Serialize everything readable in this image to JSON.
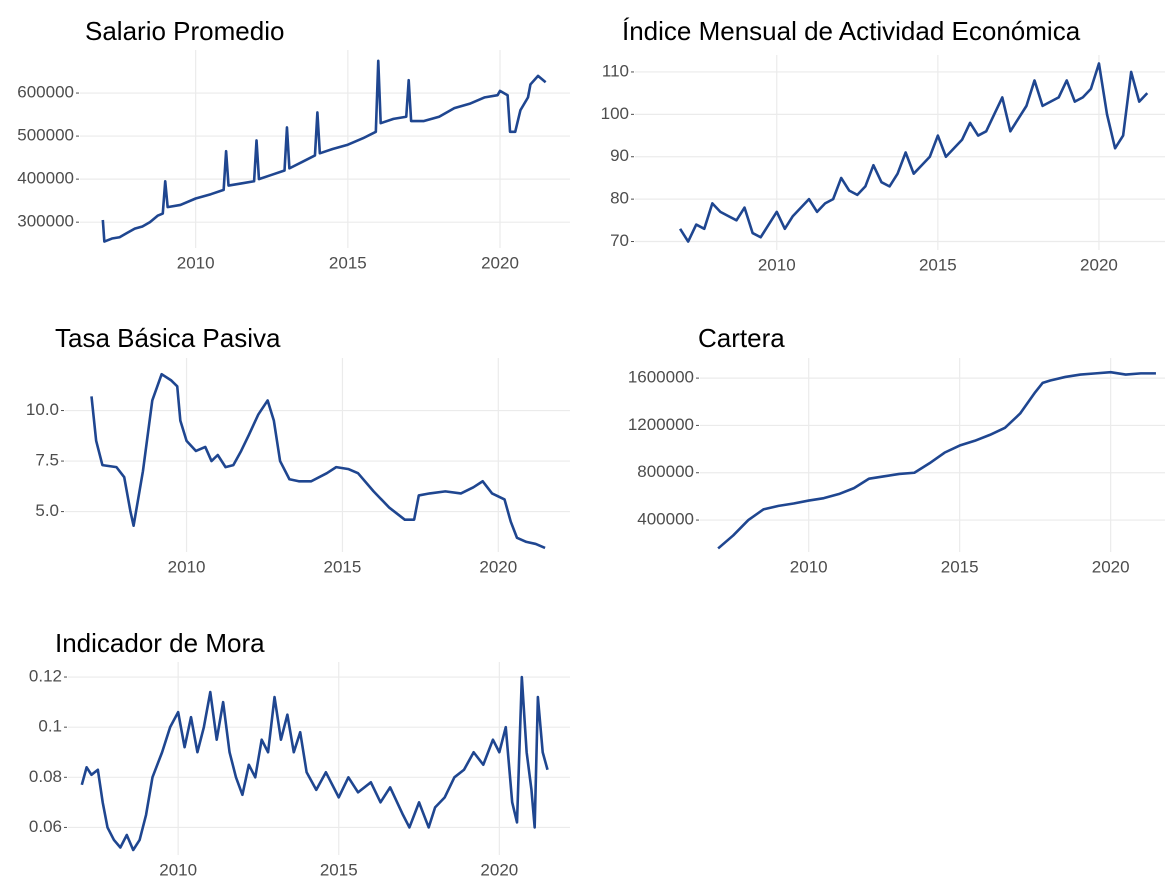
{
  "chart_data": [
    {
      "type": "line",
      "title": "Salario Promedio",
      "x": [
        2006.95,
        2007.0,
        2007.25,
        2007.5,
        2007.75,
        2008.0,
        2008.25,
        2008.5,
        2008.75,
        2008.92,
        2009.0,
        2009.08,
        2009.5,
        2010.0,
        2010.5,
        2010.92,
        2011.0,
        2011.08,
        2011.5,
        2011.92,
        2012.0,
        2012.08,
        2012.5,
        2012.92,
        2013.0,
        2013.08,
        2013.5,
        2013.92,
        2014.0,
        2014.08,
        2014.5,
        2015.0,
        2015.5,
        2015.92,
        2016.0,
        2016.08,
        2016.5,
        2016.92,
        2017.0,
        2017.08,
        2017.5,
        2018.0,
        2018.5,
        2019.0,
        2019.5,
        2019.92,
        2020.0,
        2020.25,
        2020.33,
        2020.5,
        2020.67,
        2020.92,
        2021.0,
        2021.25,
        2021.5
      ],
      "values": [
        305000,
        255000,
        262000,
        265000,
        275000,
        285000,
        290000,
        300000,
        315000,
        320000,
        395000,
        335000,
        340000,
        355000,
        365000,
        375000,
        465000,
        385000,
        390000,
        395000,
        490000,
        400000,
        410000,
        420000,
        520000,
        425000,
        440000,
        455000,
        555000,
        460000,
        470000,
        480000,
        495000,
        510000,
        675000,
        530000,
        540000,
        545000,
        630000,
        535000,
        535000,
        545000,
        565000,
        575000,
        590000,
        595000,
        605000,
        595000,
        510000,
        510000,
        560000,
        590000,
        620000,
        640000,
        625000
      ],
      "color": "#1f4690",
      "xlim": [
        2006.2,
        2022.3
      ],
      "xticks": [
        2010,
        2015,
        2020
      ],
      "ylim": [
        240000,
        700000
      ],
      "yticks": [
        300000,
        400000,
        500000,
        600000
      ],
      "grid": true
    },
    {
      "type": "line",
      "title": "Índice Mensual de Actividad Económica",
      "x": [
        2007.0,
        2007.25,
        2007.5,
        2007.75,
        2008.0,
        2008.25,
        2008.5,
        2008.75,
        2009.0,
        2009.25,
        2009.5,
        2009.75,
        2010.0,
        2010.25,
        2010.5,
        2010.75,
        2011.0,
        2011.25,
        2011.5,
        2011.75,
        2012.0,
        2012.25,
        2012.5,
        2012.75,
        2013.0,
        2013.25,
        2013.5,
        2013.75,
        2014.0,
        2014.25,
        2014.5,
        2014.75,
        2015.0,
        2015.25,
        2015.5,
        2015.75,
        2016.0,
        2016.25,
        2016.5,
        2016.75,
        2017.0,
        2017.25,
        2017.5,
        2017.75,
        2018.0,
        2018.25,
        2018.5,
        2018.75,
        2019.0,
        2019.25,
        2019.5,
        2019.75,
        2020.0,
        2020.25,
        2020.5,
        2020.75,
        2021.0,
        2021.25,
        2021.5
      ],
      "values": [
        73,
        70,
        74,
        73,
        79,
        77,
        76,
        75,
        78,
        72,
        71,
        74,
        77,
        73,
        76,
        78,
        80,
        77,
        79,
        80,
        85,
        82,
        81,
        83,
        88,
        84,
        83,
        86,
        91,
        86,
        88,
        90,
        95,
        90,
        92,
        94,
        98,
        95,
        96,
        100,
        104,
        96,
        99,
        102,
        108,
        102,
        103,
        104,
        108,
        103,
        104,
        106,
        112,
        100,
        92,
        95,
        110,
        103,
        105
      ],
      "color": "#1f4690",
      "xlim": [
        2005.6,
        2022.05
      ],
      "xticks": [
        2010,
        2015,
        2020
      ],
      "ylim": [
        68,
        114
      ],
      "yticks": [
        70,
        80,
        90,
        100,
        110
      ],
      "grid": true
    },
    {
      "type": "line",
      "title": "Tasa Básica Pasiva",
      "x": [
        2006.95,
        2007.1,
        2007.3,
        2007.75,
        2008.0,
        2008.2,
        2008.3,
        2008.6,
        2008.9,
        2009.2,
        2009.5,
        2009.7,
        2009.8,
        2010.0,
        2010.3,
        2010.6,
        2010.8,
        2011.0,
        2011.25,
        2011.5,
        2011.75,
        2012.0,
        2012.3,
        2012.6,
        2012.8,
        2013.0,
        2013.3,
        2013.6,
        2014.0,
        2014.5,
        2014.8,
        2015.2,
        2015.5,
        2016.0,
        2016.5,
        2017.0,
        2017.3,
        2017.45,
        2017.8,
        2018.3,
        2018.8,
        2019.2,
        2019.5,
        2019.8,
        2020.2,
        2020.4,
        2020.6,
        2020.9,
        2021.2,
        2021.5
      ],
      "values": [
        10.7,
        8.5,
        7.3,
        7.2,
        6.7,
        5.0,
        4.3,
        7.0,
        10.5,
        11.8,
        11.5,
        11.2,
        9.5,
        8.5,
        8.0,
        8.2,
        7.5,
        7.8,
        7.2,
        7.3,
        8.0,
        8.8,
        9.8,
        10.5,
        9.5,
        7.5,
        6.6,
        6.5,
        6.5,
        6.9,
        7.2,
        7.1,
        6.9,
        6.0,
        5.2,
        4.6,
        4.6,
        5.8,
        5.9,
        6.0,
        5.9,
        6.2,
        6.5,
        5.9,
        5.6,
        4.5,
        3.7,
        3.5,
        3.4,
        3.2
      ],
      "color": "#1f4690",
      "xlim": [
        2006.1,
        2022.3
      ],
      "xticks": [
        2010,
        2015,
        2020
      ],
      "ylim": [
        3,
        12.6
      ],
      "yticks": [
        {
          "value": 5,
          "label": "5.0"
        },
        {
          "value": 7.5,
          "label": "7.5"
        },
        {
          "value": 10,
          "label": "10.0"
        }
      ],
      "grid": true
    },
    {
      "type": "line",
      "title": "Cartera",
      "x": [
        2007.0,
        2007.5,
        2008.0,
        2008.5,
        2009.0,
        2009.5,
        2010.0,
        2010.5,
        2011.0,
        2011.5,
        2012.0,
        2012.5,
        2013.0,
        2013.5,
        2014.0,
        2014.5,
        2015.0,
        2015.5,
        2016.0,
        2016.5,
        2017.0,
        2017.5,
        2017.75,
        2018.0,
        2018.5,
        2019.0,
        2019.5,
        2020.0,
        2020.5,
        2021.0,
        2021.5
      ],
      "values": [
        160000,
        270000,
        400000,
        490000,
        520000,
        540000,
        565000,
        585000,
        620000,
        670000,
        750000,
        770000,
        790000,
        800000,
        880000,
        970000,
        1030000,
        1070000,
        1120000,
        1180000,
        1300000,
        1480000,
        1560000,
        1580000,
        1610000,
        1630000,
        1640000,
        1650000,
        1630000,
        1640000,
        1640000
      ],
      "color": "#1f4690",
      "xlim": [
        2006.4,
        2021.8
      ],
      "xticks": [
        2010,
        2015,
        2020
      ],
      "ylim": [
        130000,
        1770000
      ],
      "yticks": [
        400000,
        800000,
        1200000,
        1600000
      ],
      "grid": true
    },
    {
      "type": "line",
      "title": "Indicador de Mora",
      "x": [
        2007.0,
        2007.15,
        2007.3,
        2007.5,
        2007.65,
        2007.8,
        2008.0,
        2008.2,
        2008.4,
        2008.6,
        2008.8,
        2009.0,
        2009.2,
        2009.5,
        2009.75,
        2010.0,
        2010.2,
        2010.4,
        2010.6,
        2010.8,
        2011.0,
        2011.2,
        2011.4,
        2011.6,
        2011.8,
        2012.0,
        2012.2,
        2012.4,
        2012.6,
        2012.8,
        2013.0,
        2013.2,
        2013.4,
        2013.6,
        2013.8,
        2014.0,
        2014.3,
        2014.6,
        2015.0,
        2015.3,
        2015.6,
        2016.0,
        2016.3,
        2016.6,
        2017.0,
        2017.2,
        2017.5,
        2017.8,
        2018.0,
        2018.3,
        2018.6,
        2018.9,
        2019.2,
        2019.5,
        2019.8,
        2020.0,
        2020.2,
        2020.4,
        2020.55,
        2020.7,
        2020.85,
        2021.0,
        2021.1,
        2021.2,
        2021.35,
        2021.5
      ],
      "values": [
        0.077,
        0.084,
        0.081,
        0.083,
        0.07,
        0.06,
        0.055,
        0.052,
        0.057,
        0.051,
        0.055,
        0.065,
        0.08,
        0.09,
        0.1,
        0.106,
        0.092,
        0.104,
        0.09,
        0.1,
        0.114,
        0.095,
        0.11,
        0.09,
        0.08,
        0.073,
        0.085,
        0.08,
        0.095,
        0.09,
        0.112,
        0.095,
        0.105,
        0.09,
        0.098,
        0.082,
        0.075,
        0.082,
        0.072,
        0.08,
        0.074,
        0.078,
        0.07,
        0.076,
        0.065,
        0.06,
        0.07,
        0.06,
        0.068,
        0.072,
        0.08,
        0.083,
        0.09,
        0.085,
        0.095,
        0.09,
        0.1,
        0.07,
        0.062,
        0.12,
        0.09,
        0.075,
        0.06,
        0.112,
        0.09,
        0.083
      ],
      "color": "#1f4690",
      "xlim": [
        2006.57,
        2022.2
      ],
      "xticks": [
        2010,
        2015,
        2020
      ],
      "ylim": [
        0.049,
        0.126
      ],
      "yticks": [
        0.06,
        0.08,
        0.1,
        0.12
      ],
      "grid": true
    }
  ]
}
